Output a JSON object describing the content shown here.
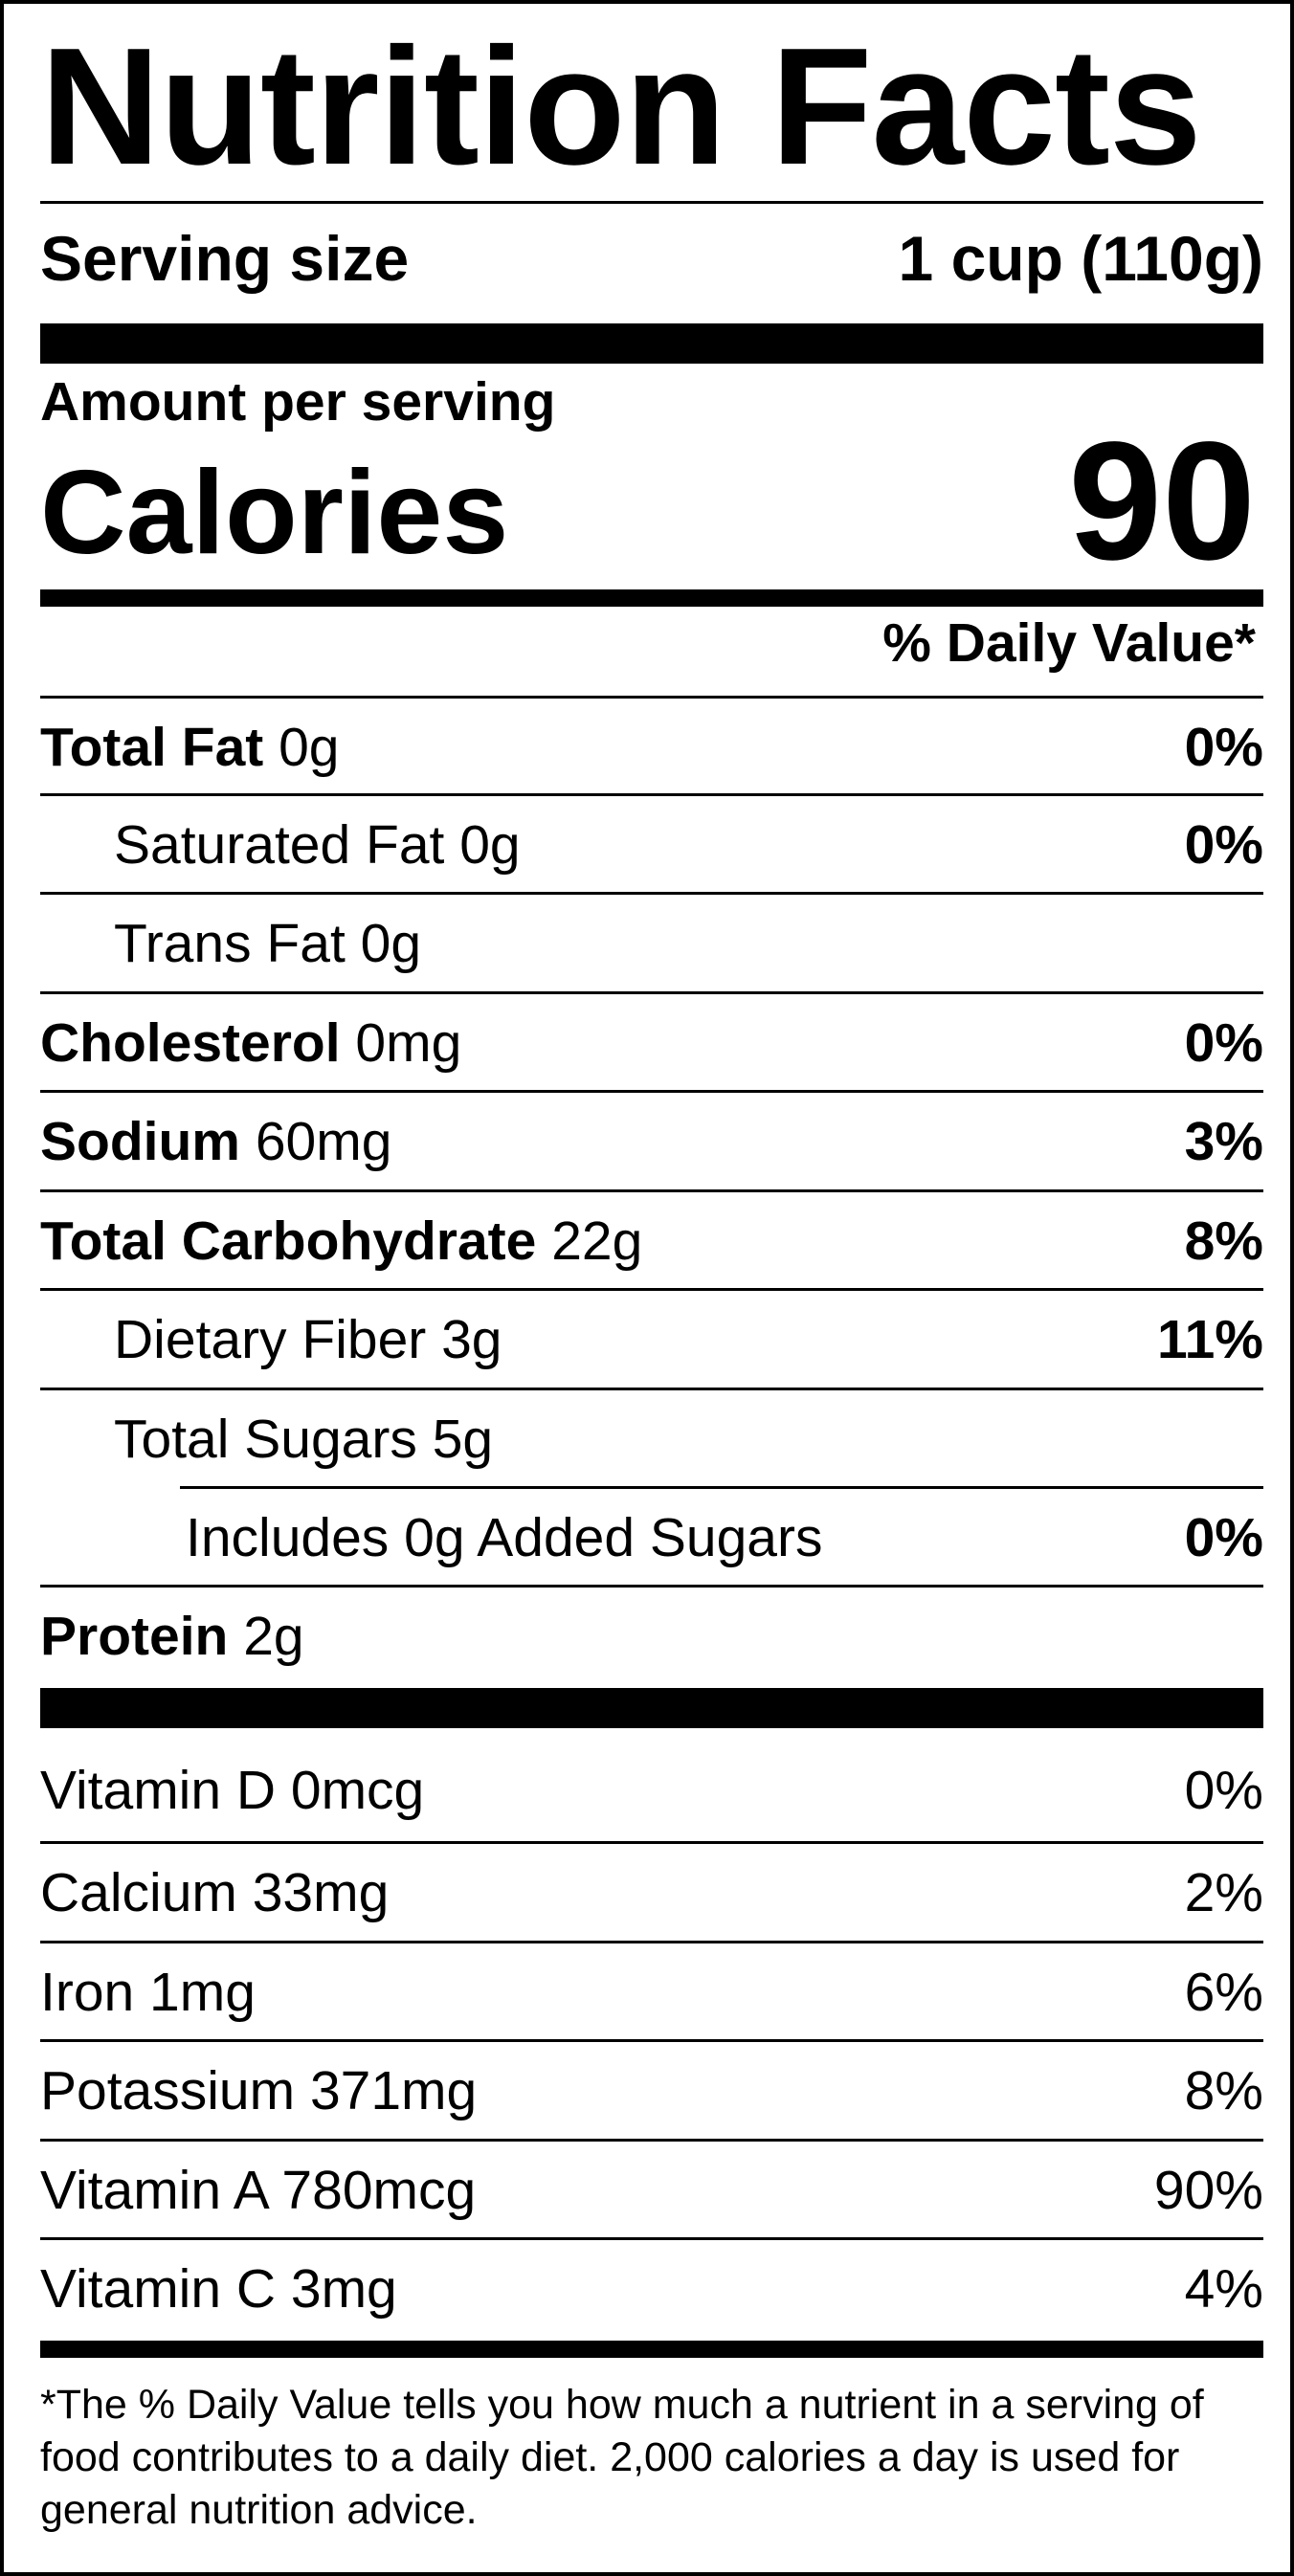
{
  "title": "Nutrition Facts",
  "serving": {
    "label": "Serving size",
    "value": "1 cup (110g)"
  },
  "amount_per_serving": "Amount per serving",
  "calories": {
    "label": "Calories",
    "value": "90"
  },
  "daily_value_header": "% Daily Value*",
  "nutrients": [
    {
      "name": "Total Fat",
      "amount": "0g",
      "dv": "0%"
    },
    {
      "name": "Saturated Fat",
      "amount": "0g",
      "dv": "0%"
    },
    {
      "name": "Trans Fat",
      "amount": "0g",
      "dv": ""
    },
    {
      "name": "Cholesterol",
      "amount": "0mg",
      "dv": "0%"
    },
    {
      "name": "Sodium",
      "amount": "60mg",
      "dv": "3%"
    },
    {
      "name": "Total Carbohydrate",
      "amount": "22g",
      "dv": "8%"
    },
    {
      "name": "Dietary Fiber",
      "amount": "3g",
      "dv": "11%"
    },
    {
      "name": "Total Sugars",
      "amount": "5g",
      "dv": ""
    },
    {
      "name": "Includes 0g Added Sugars",
      "amount": "",
      "dv": "0%"
    },
    {
      "name": "Protein",
      "amount": "2g",
      "dv": ""
    }
  ],
  "vitamins": [
    {
      "label": "Vitamin D 0mcg",
      "dv": "0%"
    },
    {
      "label": "Calcium 33mg",
      "dv": "2%"
    },
    {
      "label": "Iron 1mg",
      "dv": "6%"
    },
    {
      "label": "Potassium 371mg",
      "dv": "8%"
    },
    {
      "label": "Vitamin A 780mcg",
      "dv": "90%"
    },
    {
      "label": "Vitamin C 3mg",
      "dv": "4%"
    }
  ],
  "footnote": "*The % Daily Value tells you how much a nutrient in a serving of food contributes to a daily diet. 2,000 calories a day is used for general nutrition advice."
}
